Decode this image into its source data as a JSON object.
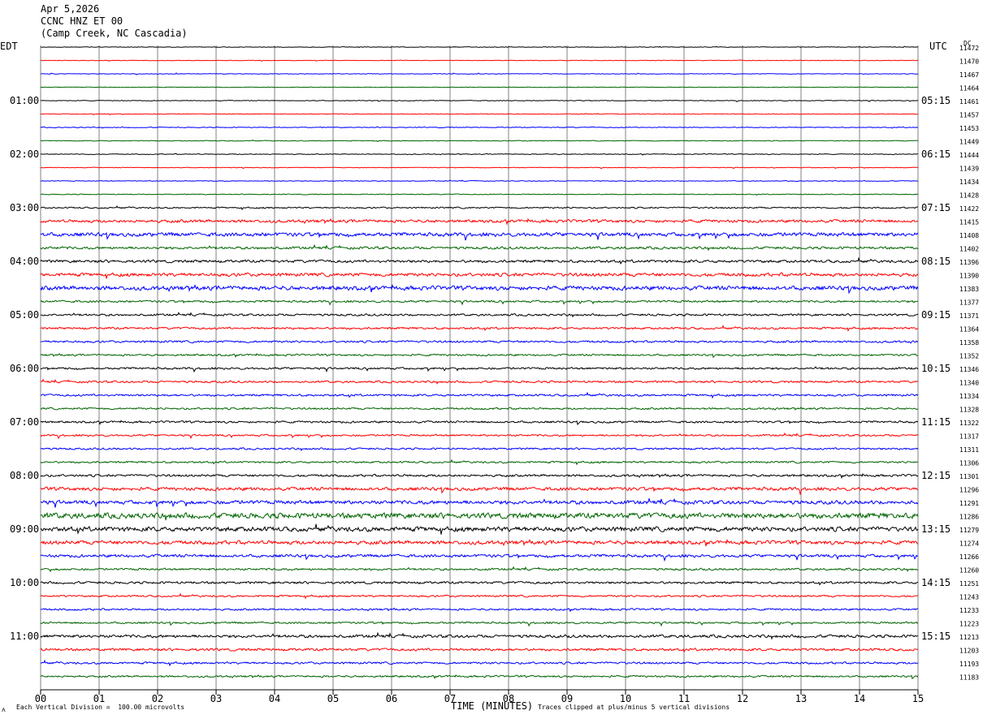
{
  "header": {
    "date": "Apr 5,2026",
    "station": "CCNC HNZ ET 00",
    "location": "(Camp Creek, NC Cascadia)"
  },
  "left_tz": "EDT",
  "right_tz": "UTC",
  "dc_label": "DC",
  "footer": {
    "scale": "Each Vertical Division =  100.00 microvolts",
    "clip": "Traces clipped at plus/minus 5 vertical divisions",
    "corner_mark": "ʌ"
  },
  "colors": {
    "cycle": [
      "#000000",
      "#ff0000",
      "#0000ff",
      "#006400"
    ],
    "grid": "#808080"
  },
  "chart_data": {
    "type": "line",
    "title": "CCNC HNZ ET 00",
    "xlabel": "TIME (MINUTES)",
    "ylabel": "",
    "xlim": [
      0,
      15
    ],
    "x_ticks": [
      "00",
      "01",
      "02",
      "03",
      "04",
      "05",
      "06",
      "07",
      "08",
      "09",
      "10",
      "11",
      "12",
      "13",
      "14",
      "15"
    ],
    "row_count": 48,
    "left_hour_labels": [
      "01:00",
      "02:00",
      "03:00",
      "04:00",
      "05:00",
      "06:00",
      "07:00",
      "08:00",
      "09:00",
      "10:00",
      "11:00"
    ],
    "right_hour_labels": [
      "05:15",
      "06:15",
      "07:15",
      "08:15",
      "09:15",
      "10:15",
      "11:15",
      "12:15",
      "13:15",
      "14:15",
      "15:15"
    ],
    "dc_offsets": [
      "11472",
      "11470",
      "11467",
      "11464",
      "11461",
      "11457",
      "11453",
      "11449",
      "11444",
      "11439",
      "11434",
      "11428",
      "11422",
      "11415",
      "11408",
      "11402",
      "11396",
      "11390",
      "11383",
      "11377",
      "11371",
      "11364",
      "11358",
      "11352",
      "11346",
      "11340",
      "11334",
      "11328",
      "11322",
      "11317",
      "11311",
      "11306",
      "11301",
      "11296",
      "11291",
      "11286",
      "11279",
      "11274",
      "11266",
      "11260",
      "11251",
      "11243",
      "11233",
      "11223",
      "11213",
      "11203",
      "11193",
      "11183"
    ],
    "noise_level": [
      0.3,
      0.25,
      0.3,
      0.25,
      0.35,
      0.3,
      0.4,
      0.35,
      0.4,
      0.3,
      0.35,
      0.4,
      0.7,
      1.4,
      1.8,
      1.2,
      1.3,
      1.6,
      2.0,
      1.0,
      1.0,
      1.0,
      1.0,
      0.9,
      1.0,
      1.0,
      1.0,
      0.9,
      1.0,
      0.9,
      0.9,
      0.9,
      1.1,
      1.6,
      1.8,
      2.6,
      2.2,
      1.8,
      1.4,
      1.0,
      1.1,
      0.9,
      0.9,
      0.9,
      1.4,
      1.2,
      1.0,
      0.9
    ]
  }
}
